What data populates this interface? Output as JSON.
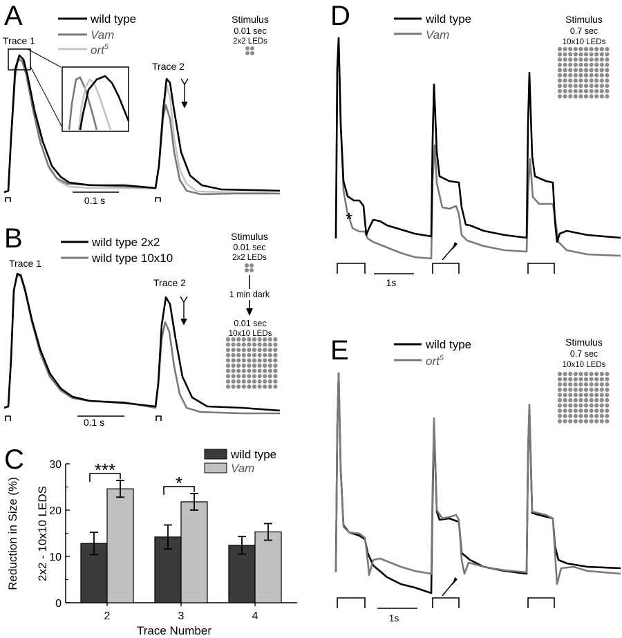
{
  "colors": {
    "black": "#000000",
    "gray": "#7a7a7a",
    "light": "#c4c4c4",
    "dark_bar": "#3b3b3b",
    "light_bar": "#c0c0c0",
    "dot": "#8c8c8c"
  },
  "panel_a": {
    "label": "A",
    "trace1_label": "Trace 1",
    "trace2_label": "Trace 2",
    "legend": [
      "wild type",
      "Vam",
      "ort",
      "5"
    ],
    "stimulus": [
      "Stimulus",
      "0.01 sec",
      "2x2 LEDs"
    ],
    "scale_label": "0.1 s"
  },
  "panel_b": {
    "label": "B",
    "trace1_label": "Trace 1",
    "trace2_label": "Trace 2",
    "legend": [
      "wild type 2x2",
      "wild type 10x10"
    ],
    "stimulus": [
      "Stimulus",
      "0.01 sec",
      "2x2 LEDs",
      "1 min dark",
      "0.01 sec",
      "10x10 LEDs"
    ],
    "scale_label": "0.1 s"
  },
  "panel_d": {
    "label": "D",
    "legend": [
      "wild type",
      "Vam"
    ],
    "stimulus": [
      "Stimulus",
      "0.7 sec",
      "10x10 LEDs"
    ],
    "asterisk": "*",
    "scale_label": "1s"
  },
  "panel_e": {
    "label": "E",
    "legend": [
      "wild type",
      "ort",
      "5"
    ],
    "stimulus": [
      "Stimulus",
      "0.7 sec",
      "10x10 LEDs"
    ],
    "scale_label": "1s"
  },
  "panel_c": {
    "label": "C",
    "legend": [
      "wild type",
      "Vam"
    ],
    "significance": [
      "***",
      "*"
    ]
  },
  "chart_data": {
    "type": "bar",
    "categories": [
      "2",
      "3",
      "4"
    ],
    "series": [
      {
        "name": "wild type",
        "values": [
          12.8,
          14.2,
          12.4
        ],
        "errors": [
          2.4,
          2.6,
          1.9
        ]
      },
      {
        "name": "Vam",
        "values": [
          24.6,
          21.8,
          15.3
        ],
        "errors": [
          1.8,
          1.8,
          1.8
        ]
      }
    ],
    "xlabel": "Trace Number",
    "ylabel": [
      "Reduction in Size (%)",
      "2x2  - 10x10 LEDS"
    ],
    "yticks": [
      "0",
      "10",
      "20",
      "30"
    ],
    "ylim": [
      0,
      30
    ],
    "significance": [
      {
        "category": "2",
        "label": "***"
      },
      {
        "category": "3",
        "label": "*"
      }
    ]
  }
}
